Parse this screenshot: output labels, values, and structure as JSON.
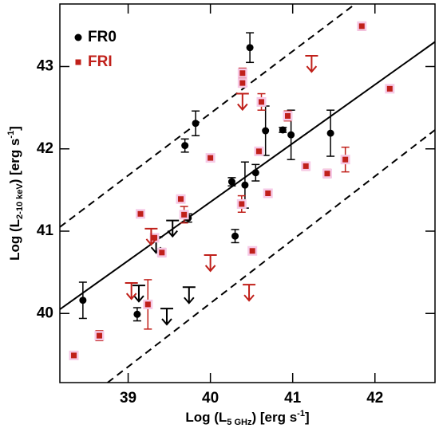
{
  "chart_data": {
    "type": "scatter",
    "xlabel": [
      "Log (L",
      "5 GHz",
      ") [erg s",
      "-1",
      "]"
    ],
    "ylabel": [
      "Log (L",
      "2-10 keV",
      ") [erg s",
      "-1",
      "]"
    ],
    "xlim": [
      38.17,
      42.73
    ],
    "ylim": [
      39.16,
      43.76
    ],
    "xticks": [
      39,
      40,
      41,
      42
    ],
    "yticks": [
      40,
      41,
      42,
      43
    ],
    "legend": "upper left",
    "series": [
      {
        "name": "FR0",
        "color": "#000000",
        "marker": "circle",
        "x": [
          38.45,
          39.11,
          39.82,
          39.69,
          39.73,
          40.26,
          40.3,
          40.42,
          40.55,
          40.48,
          40.67,
          40.88,
          40.98,
          41.46
        ],
        "values": [
          40.16,
          39.99,
          42.31,
          42.04,
          41.16,
          41.6,
          40.94,
          41.56,
          41.71,
          43.23,
          42.22,
          42.23,
          42.17,
          42.19
        ],
        "errors": [
          0.22,
          0.08,
          0.15,
          0.08,
          0.05,
          0.05,
          0.08,
          0.28,
          0.1,
          0.18,
          0.3,
          0.03,
          0.3,
          0.28
        ],
        "limit_x": [
          39.54,
          39.34,
          39.13,
          39.47,
          39.74
        ],
        "limit_y": [
          41.13,
          40.93,
          40.34,
          40.06,
          40.32
        ]
      },
      {
        "name": "FRI",
        "color": "#c0201a",
        "marker": "square",
        "x": [
          38.34,
          38.65,
          39.15,
          39.24,
          39.32,
          39.41,
          39.64,
          39.68,
          40.0,
          40.39,
          40.39,
          40.38,
          40.51,
          40.62,
          40.59,
          40.7,
          40.94,
          41.16,
          41.42,
          41.64,
          41.84,
          42.18
        ],
        "values": [
          39.49,
          39.73,
          41.21,
          40.11,
          40.92,
          40.74,
          41.39,
          41.2,
          41.89,
          42.92,
          42.8,
          41.33,
          40.76,
          42.57,
          41.97,
          41.46,
          42.4,
          41.79,
          41.7,
          41.87,
          43.49,
          42.73
        ],
        "errors": [
          0.03,
          0.06,
          0.03,
          0.3,
          0.03,
          0.05,
          0.03,
          0.1,
          0.03,
          0.06,
          0.05,
          0.1,
          0.03,
          0.1,
          0.03,
          0.03,
          0.06,
          0.05,
          0.05,
          0.15,
          0.05,
          0.03
        ],
        "limit_x": [
          40.39,
          41.23,
          40.0,
          40.47,
          39.04,
          39.28
        ],
        "limit_y": [
          42.67,
          43.13,
          40.71,
          40.35,
          40.37,
          41.03
        ]
      }
    ],
    "lines": [
      {
        "x": [
          38.17,
          42.73
        ],
        "y": [
          40.05,
          43.3
        ],
        "dashed": false
      },
      {
        "x": [
          38.17,
          41.76
        ],
        "y": [
          41.05,
          43.76
        ],
        "dashed": true
      },
      {
        "x": [
          38.75,
          42.73
        ],
        "y": [
          39.16,
          42.23
        ],
        "dashed": true
      }
    ]
  }
}
